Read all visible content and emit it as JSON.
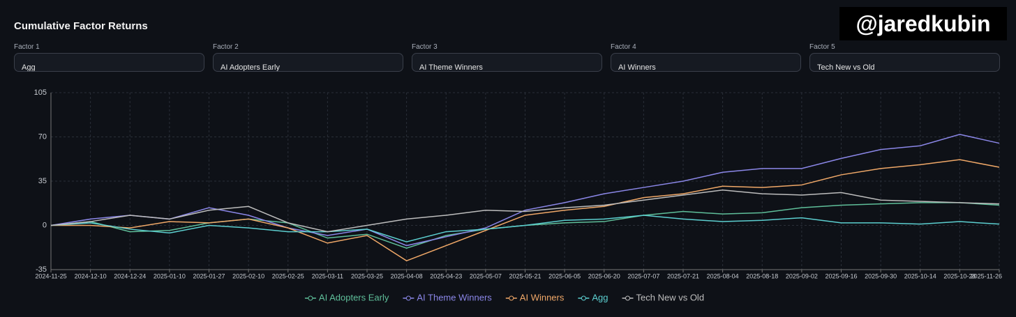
{
  "header": {
    "title": "Cumulative Factor Returns",
    "watermark": "@jaredkubin"
  },
  "factors": [
    {
      "label": "Factor 1",
      "value": "Agg"
    },
    {
      "label": "Factor 2",
      "value": "AI Adopters Early"
    },
    {
      "label": "Factor 3",
      "value": "AI Theme Winners"
    },
    {
      "label": "Factor 4",
      "value": "AI Winners"
    },
    {
      "label": "Factor 5",
      "value": "Tech New vs Old"
    }
  ],
  "chart_data": {
    "type": "line",
    "categories": [
      "2024-11-25",
      "2024-12-10",
      "2024-12-24",
      "2025-01-10",
      "2025-01-27",
      "2025-02-10",
      "2025-02-25",
      "2025-03-11",
      "2025-03-25",
      "2025-04-08",
      "2025-04-23",
      "2025-05-07",
      "2025-05-21",
      "2025-06-05",
      "2025-06-20",
      "2025-07-07",
      "2025-07-21",
      "2025-08-04",
      "2025-08-18",
      "2025-09-02",
      "2025-09-16",
      "2025-09-30",
      "2025-10-14",
      "2025-10-28",
      "2025-11-26"
    ],
    "series": [
      {
        "name": "AI Adopters Early",
        "color": "#5fbf9a",
        "values": [
          0,
          3,
          -5,
          -4,
          2,
          5,
          2,
          -10,
          -7,
          -18,
          -8,
          -3,
          0,
          2,
          3,
          8,
          11,
          9,
          10,
          14,
          16,
          17,
          18,
          18,
          16
        ]
      },
      {
        "name": "AI Theme Winners",
        "color": "#8b87e8",
        "values": [
          0,
          5,
          8,
          5,
          14,
          8,
          -2,
          -8,
          -3,
          -16,
          -9,
          -2,
          12,
          18,
          25,
          30,
          35,
          42,
          45,
          45,
          53,
          60,
          63,
          72,
          65
        ]
      },
      {
        "name": "AI Winners",
        "color": "#f0a868",
        "values": [
          0,
          0,
          -2,
          3,
          2,
          5,
          -2,
          -14,
          -8,
          -28,
          -16,
          -4,
          8,
          12,
          15,
          22,
          25,
          31,
          30,
          32,
          40,
          45,
          48,
          52,
          46
        ]
      },
      {
        "name": "Agg",
        "color": "#5ccfd0",
        "values": [
          0,
          2,
          -3,
          -6,
          0,
          -2,
          -5,
          -5,
          -3,
          -13,
          -5,
          -3,
          0,
          4,
          5,
          8,
          5,
          3,
          4,
          6,
          2,
          2,
          1,
          3,
          1
        ]
      },
      {
        "name": "Tech New vs Old",
        "color": "#bdbdbd",
        "values": [
          0,
          3,
          8,
          5,
          12,
          15,
          2,
          -5,
          0,
          5,
          8,
          12,
          11,
          14,
          16,
          20,
          24,
          28,
          25,
          24,
          26,
          20,
          19,
          18,
          17
        ]
      }
    ],
    "ylim": [
      -35,
      105
    ],
    "yticks": [
      -35,
      0,
      35,
      70,
      105
    ],
    "grid": true
  }
}
